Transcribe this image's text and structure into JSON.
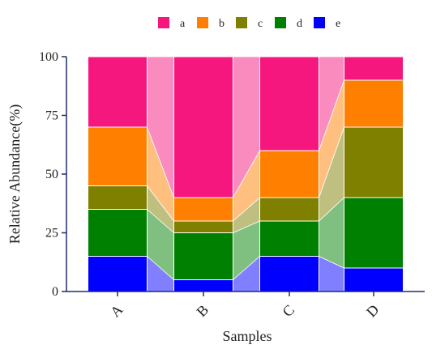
{
  "chart_data": {
    "type": "stacked_bar",
    "xlabel": "Samples",
    "ylabel": "Relative Abundance(%)",
    "ylim": [
      0,
      100
    ],
    "yticks": [
      0,
      25,
      50,
      75,
      100
    ],
    "categories": [
      "A",
      "B",
      "C",
      "D"
    ],
    "stack_order_bottom_to_top": [
      "e",
      "d",
      "c",
      "b",
      "a"
    ],
    "series": [
      {
        "name": "a",
        "color": "#F5177E",
        "values": [
          30,
          60,
          40,
          10
        ]
      },
      {
        "name": "b",
        "color": "#FF7F00",
        "values": [
          25,
          10,
          20,
          20
        ]
      },
      {
        "name": "c",
        "color": "#808000",
        "values": [
          10,
          5,
          10,
          30
        ]
      },
      {
        "name": "d",
        "color": "#008000",
        "values": [
          20,
          20,
          15,
          30
        ]
      },
      {
        "name": "e",
        "color": "#0000FF",
        "values": [
          15,
          5,
          15,
          10
        ]
      }
    ],
    "legend_position": "top",
    "connecting_bands": true,
    "x_tick_rotation": "-45deg"
  }
}
